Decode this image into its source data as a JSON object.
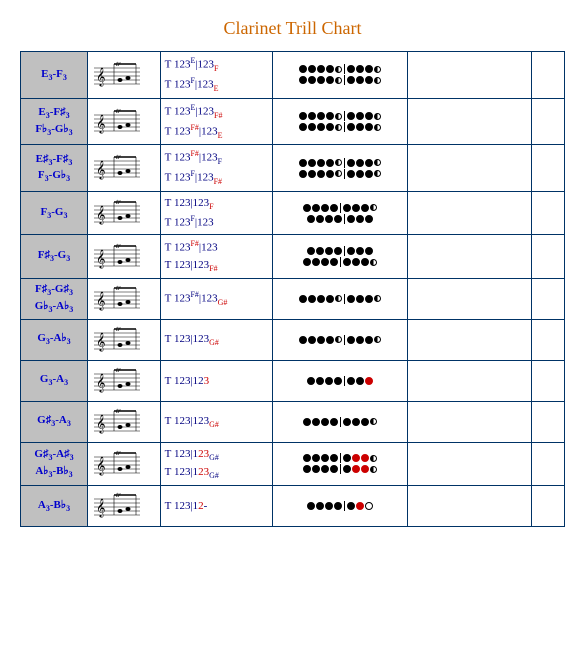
{
  "title": "Clarinet Trill Chart",
  "colors": {
    "title": "#cc6600",
    "border": "#003366",
    "label_bg": "#c0c0c0",
    "label_text": "#0000cc",
    "finger_text": "#000080",
    "accent": "#cc0000",
    "background": "#ffffff"
  },
  "staff": {
    "width": 50,
    "height": 34,
    "line_color": "#000000",
    "tr_text": "tr",
    "tr_fontsize": 7
  },
  "columns": [
    "notes",
    "staff",
    "fingering",
    "holes",
    "blank1",
    "blank2"
  ],
  "rows": [
    {
      "label_lines": [
        "E₃-F₃"
      ],
      "fingerings": [
        {
          "parts": [
            {
              "t": "T 123"
            },
            {
              "t": "E",
              "cls": "sup"
            },
            {
              "t": "|123"
            },
            {
              "t": "F",
              "cls": "sub8 red"
            }
          ]
        },
        {
          "parts": [
            {
              "t": "T 123"
            },
            {
              "t": "F",
              "cls": "sup"
            },
            {
              "t": "|123"
            },
            {
              "t": "E",
              "cls": "sub8 red"
            }
          ]
        }
      ],
      "holes": [
        [
          "f",
          "f",
          "f",
          "f",
          "h",
          "sep",
          "f",
          "f",
          "f",
          "h"
        ],
        [
          "f",
          "f",
          "f",
          "f",
          "h",
          "sep",
          "f",
          "f",
          "f",
          "h"
        ]
      ]
    },
    {
      "label_lines": [
        "E₃-F♯₃",
        "F♭₃-G♭₃"
      ],
      "fingerings": [
        {
          "parts": [
            {
              "t": "T 123"
            },
            {
              "t": "E",
              "cls": "sup"
            },
            {
              "t": "|123"
            },
            {
              "t": "F#",
              "cls": "sub8 red"
            }
          ]
        },
        {
          "parts": [
            {
              "t": "T 123"
            },
            {
              "t": "F#",
              "cls": "sup red"
            },
            {
              "t": "|123"
            },
            {
              "t": "E",
              "cls": "sub8 red"
            }
          ]
        }
      ],
      "holes": [
        [
          "f",
          "f",
          "f",
          "f",
          "h",
          "sep",
          "f",
          "f",
          "f",
          "h"
        ],
        [
          "f",
          "f",
          "f",
          "f",
          "h",
          "sep",
          "f",
          "f",
          "f",
          "h"
        ]
      ]
    },
    {
      "label_lines": [
        "E♯₃-F♯₃",
        "F₃-G♭₃"
      ],
      "fingerings": [
        {
          "parts": [
            {
              "t": "T 123"
            },
            {
              "t": "F#",
              "cls": "sup red"
            },
            {
              "t": "|123"
            },
            {
              "t": "F",
              "cls": "sub8"
            }
          ]
        },
        {
          "parts": [
            {
              "t": "T 123"
            },
            {
              "t": "F",
              "cls": "sup"
            },
            {
              "t": "|123"
            },
            {
              "t": "F#",
              "cls": "sub8 red"
            }
          ]
        }
      ],
      "holes": [
        [
          "f",
          "f",
          "f",
          "f",
          "h",
          "sep",
          "f",
          "f",
          "f",
          "h"
        ],
        [
          "f",
          "f",
          "f",
          "f",
          "h",
          "sep",
          "f",
          "f",
          "f",
          "h"
        ]
      ]
    },
    {
      "label_lines": [
        "F₃-G₃"
      ],
      "fingerings": [
        {
          "parts": [
            {
              "t": "T 123|123"
            },
            {
              "t": "F",
              "cls": "sub8 red"
            }
          ]
        },
        {
          "parts": [
            {
              "t": "T 123"
            },
            {
              "t": "F",
              "cls": "sup"
            },
            {
              "t": "|123"
            }
          ]
        }
      ],
      "holes": [
        [
          "f",
          "f",
          "f",
          "f",
          "sep",
          "f",
          "f",
          "f",
          "h"
        ],
        [
          "f",
          "f",
          "f",
          "f",
          "sep",
          "f",
          "f",
          "f"
        ]
      ]
    },
    {
      "label_lines": [
        "F♯₃-G₃"
      ],
      "fingerings": [
        {
          "parts": [
            {
              "t": "T 123"
            },
            {
              "t": "F#",
              "cls": "sup red"
            },
            {
              "t": "|123"
            }
          ]
        },
        {
          "parts": [
            {
              "t": "T 123|123"
            },
            {
              "t": "F#",
              "cls": "sub8 red"
            }
          ]
        }
      ],
      "holes": [
        [
          "f",
          "f",
          "f",
          "f",
          "sep",
          "f",
          "f",
          "f"
        ],
        [
          "f",
          "f",
          "f",
          "f",
          "sep",
          "f",
          "f",
          "f",
          "h"
        ]
      ]
    },
    {
      "label_lines": [
        "F♯₃-G♯₃",
        "G♭₃-A♭₃"
      ],
      "fingerings": [
        {
          "parts": [
            {
              "t": "T 123"
            },
            {
              "t": "F#",
              "cls": "sup"
            },
            {
              "t": "|123"
            },
            {
              "t": "G#",
              "cls": "sub8 red"
            }
          ]
        }
      ],
      "holes": [
        [
          "f",
          "f",
          "f",
          "f",
          "h",
          "sep",
          "f",
          "f",
          "f",
          "h"
        ]
      ]
    },
    {
      "label_lines": [
        "G₃-A♭₃"
      ],
      "fingerings": [
        {
          "parts": [
            {
              "t": "T 123|123"
            },
            {
              "t": "G#",
              "cls": "sub8 red"
            }
          ]
        }
      ],
      "holes": [
        [
          "f",
          "f",
          "f",
          "f",
          "h",
          "sep",
          "f",
          "f",
          "f",
          "h"
        ]
      ]
    },
    {
      "label_lines": [
        "G₃-A₃"
      ],
      "fingerings": [
        {
          "parts": [
            {
              "t": "T 123|12"
            },
            {
              "t": "3",
              "cls": "red"
            }
          ]
        }
      ],
      "holes": [
        [
          "f",
          "f",
          "f",
          "f",
          "sep",
          "f",
          "f",
          "r"
        ]
      ]
    },
    {
      "label_lines": [
        "G♯₃-A₃"
      ],
      "fingerings": [
        {
          "parts": [
            {
              "t": "T 123|123"
            },
            {
              "t": "G#",
              "cls": "sub8 red"
            }
          ]
        }
      ],
      "holes": [
        [
          "f",
          "f",
          "f",
          "f",
          "sep",
          "f",
          "f",
          "f",
          "h"
        ]
      ]
    },
    {
      "label_lines": [
        "G♯₃-A♯₃",
        "A♭₃-B♭₃"
      ],
      "fingerings": [
        {
          "parts": [
            {
              "t": "T 123|1"
            },
            {
              "t": "23",
              "cls": "red"
            },
            {
              "t": "G#",
              "cls": "sub8"
            }
          ]
        },
        {
          "parts": [
            {
              "t": "T 123|1"
            },
            {
              "t": "23",
              "cls": "red"
            },
            {
              "t": "G#",
              "cls": "sub8"
            }
          ]
        }
      ],
      "holes": [
        [
          "f",
          "f",
          "f",
          "f",
          "sep",
          "f",
          "r",
          "r",
          "h"
        ],
        [
          "f",
          "f",
          "f",
          "f",
          "sep",
          "f",
          "r",
          "r",
          "h"
        ]
      ]
    },
    {
      "label_lines": [
        "A₃-B♭₃"
      ],
      "fingerings": [
        {
          "parts": [
            {
              "t": "T 123|1"
            },
            {
              "t": "2",
              "cls": "red"
            },
            {
              "t": "-"
            }
          ]
        }
      ],
      "holes": [
        [
          "f",
          "f",
          "f",
          "f",
          "sep",
          "f",
          "r",
          "o"
        ]
      ]
    }
  ]
}
